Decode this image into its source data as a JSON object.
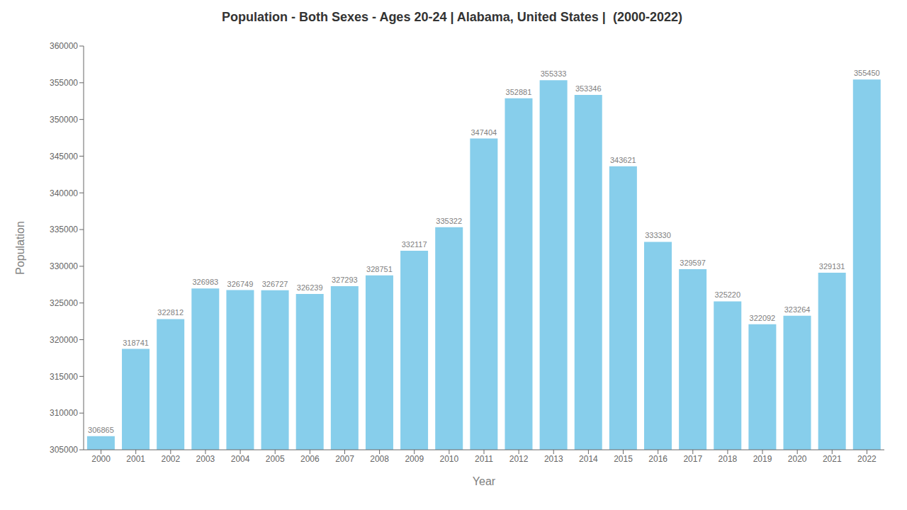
{
  "chart_data": {
    "type": "bar",
    "title": "Population - Both Sexes - Ages 20-24 | Alabama, United States |  (2000-2022)",
    "xlabel": "Year",
    "ylabel": "Population",
    "categories": [
      "2000",
      "2001",
      "2002",
      "2003",
      "2004",
      "2005",
      "2006",
      "2007",
      "2008",
      "2009",
      "2010",
      "2011",
      "2012",
      "2013",
      "2014",
      "2015",
      "2016",
      "2017",
      "2018",
      "2019",
      "2020",
      "2021",
      "2022"
    ],
    "values": [
      306865,
      318741,
      322812,
      326983,
      326749,
      326727,
      326239,
      327293,
      328751,
      332117,
      335322,
      347404,
      352881,
      355333,
      353346,
      343621,
      333330,
      329597,
      325220,
      322092,
      323264,
      329131,
      355450
    ],
    "color": "#87CEEB",
    "ylim": [
      305000,
      360000
    ],
    "yticks": [
      305000,
      310000,
      315000,
      320000,
      325000,
      330000,
      335000,
      340000,
      345000,
      350000,
      355000,
      360000
    ],
    "grid": false,
    "data_labels": true
  }
}
